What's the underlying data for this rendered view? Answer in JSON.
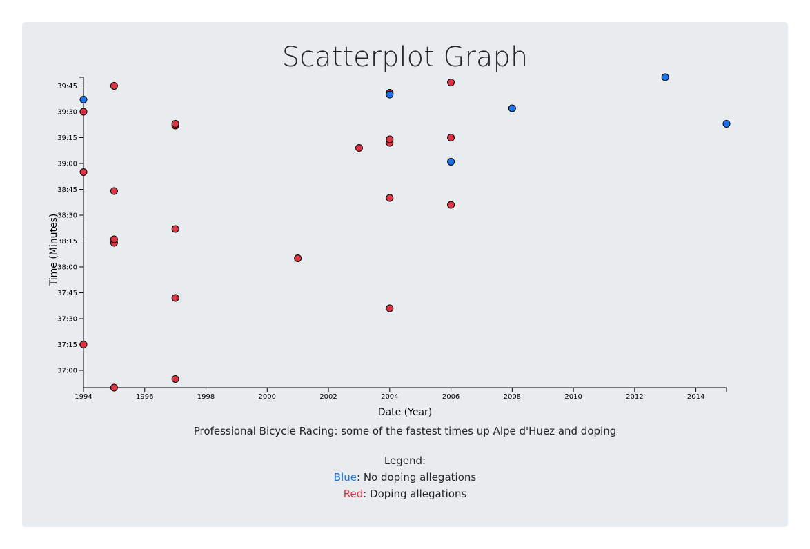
{
  "page": {
    "title": "Scatterplot Graph",
    "caption": "Professional Bicycle Racing: some of the fastest times up Alpe d'Huez and doping"
  },
  "legend": {
    "heading": "Legend:",
    "items": [
      {
        "word": "Blue",
        "text": ": No doping allegations",
        "color": "#1a73e8"
      },
      {
        "word": "Red",
        "text": ": Doping allegations",
        "color": "#dc3545"
      }
    ]
  },
  "chart_data": {
    "type": "scatter",
    "xlabel": "Date (Year)",
    "ylabel": "Time (Minutes)",
    "xlim": [
      1994,
      2015
    ],
    "ylim": [
      "36:50",
      "39:50"
    ],
    "y_inverted": true,
    "x_ticks": [
      "1994",
      "1996",
      "1998",
      "2000",
      "2002",
      "2004",
      "2006",
      "2008",
      "2010",
      "2012",
      "2014"
    ],
    "y_ticks": [
      "37:00",
      "37:15",
      "37:30",
      "37:45",
      "38:00",
      "38:15",
      "38:30",
      "38:45",
      "39:00",
      "39:15",
      "39:30",
      "39:45"
    ],
    "grid": false,
    "legend_placement": "bottom-center",
    "series": [
      {
        "color": "#dc3545",
        "points": [
          {
            "x": 1994,
            "y": "37:15"
          },
          {
            "x": 1994,
            "y": "38:55"
          },
          {
            "x": 1994,
            "y": "39:30"
          },
          {
            "x": 1995,
            "y": "36:50"
          },
          {
            "x": 1995,
            "y": "38:14"
          },
          {
            "x": 1995,
            "y": "38:16"
          },
          {
            "x": 1995,
            "y": "38:44"
          },
          {
            "x": 1995,
            "y": "39:45"
          },
          {
            "x": 1997,
            "y": "36:55"
          },
          {
            "x": 1997,
            "y": "37:42"
          },
          {
            "x": 1997,
            "y": "38:22"
          },
          {
            "x": 1997,
            "y": "39:22"
          },
          {
            "x": 1997,
            "y": "39:23"
          },
          {
            "x": 2001,
            "y": "38:05"
          },
          {
            "x": 2003,
            "y": "39:09"
          },
          {
            "x": 2004,
            "y": "37:36"
          },
          {
            "x": 2004,
            "y": "38:40"
          },
          {
            "x": 2004,
            "y": "39:12"
          },
          {
            "x": 2004,
            "y": "39:14"
          },
          {
            "x": 2004,
            "y": "39:41"
          },
          {
            "x": 2006,
            "y": "38:36"
          },
          {
            "x": 2006,
            "y": "39:15"
          },
          {
            "x": 2006,
            "y": "39:47"
          }
        ]
      },
      {
        "color": "#1a73e8",
        "points": [
          {
            "x": 1994,
            "y": "39:37"
          },
          {
            "x": 2004,
            "y": "39:40"
          },
          {
            "x": 2006,
            "y": "39:01"
          },
          {
            "x": 2008,
            "y": "39:32"
          },
          {
            "x": 2013,
            "y": "39:50"
          },
          {
            "x": 2015,
            "y": "39:23"
          }
        ]
      }
    ]
  }
}
